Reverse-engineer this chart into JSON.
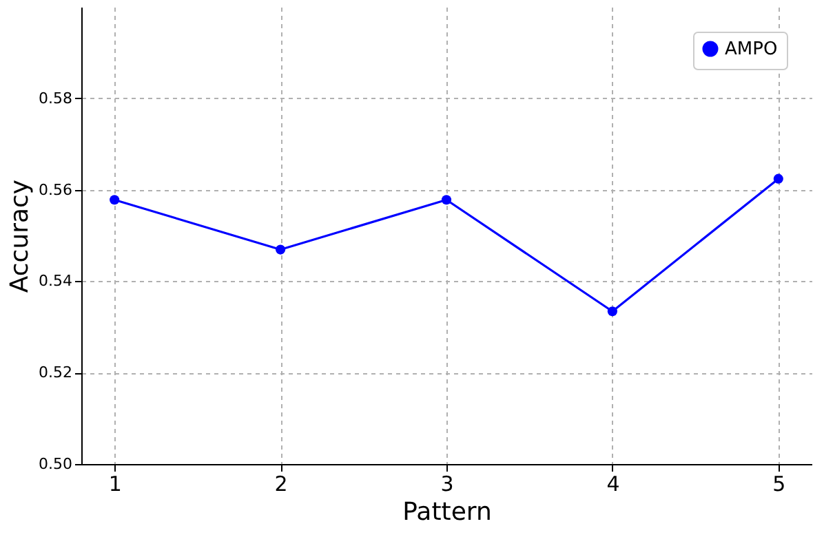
{
  "chart_data": {
    "type": "line",
    "xlabel": "Pattern",
    "ylabel": "Accuracy",
    "x": [
      1,
      2,
      3,
      4,
      5
    ],
    "series": [
      {
        "name": "AMPO",
        "color": "#0000ff",
        "values": [
          0.5578,
          0.5469,
          0.5578,
          0.5334,
          0.5624
        ]
      }
    ],
    "xlim": [
      0.8,
      5.2
    ],
    "xticks": [
      1,
      2,
      3,
      4,
      5
    ],
    "ylim": [
      0.5,
      0.6
    ],
    "yticks": [
      {
        "value": 0.5,
        "label": "0.50"
      },
      {
        "value": 0.52,
        "label": "0.52"
      },
      {
        "value": 0.54,
        "label": "0.54"
      },
      {
        "value": 0.56,
        "label": "0.56"
      },
      {
        "value": 0.58,
        "label": "0.58"
      }
    ],
    "grid": true,
    "legend": "top right",
    "marker": "circle",
    "line_style": "solid"
  }
}
